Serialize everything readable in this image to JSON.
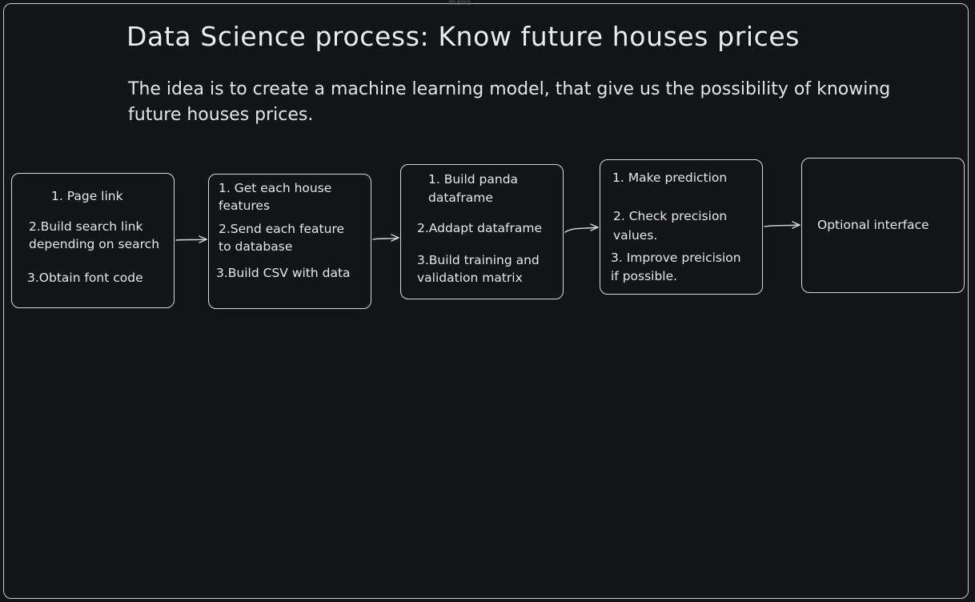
{
  "frame": {
    "name": "mano"
  },
  "header": {
    "title": "Data Science process: Know future houses prices",
    "subtitle": "The idea is to create a machine learning model, that give us the possibility of knowing future houses prices."
  },
  "steps": [
    {
      "lines": [
        "1. Page link",
        "2.Build search link",
        "depending on search",
        "3.Obtain font code"
      ]
    },
    {
      "lines": [
        "1. Get each house",
        "features",
        "2.Send each feature",
        "to database",
        "3.Build CSV with data"
      ]
    },
    {
      "lines": [
        "1. Build panda",
        "dataframe",
        "2.Addapt dataframe",
        "3.Build training and",
        "validation matrix"
      ]
    },
    {
      "lines": [
        "1. Make prediction",
        "2. Check precision",
        "values.",
        "3. Improve preicision",
        "if possible."
      ]
    },
    {
      "lines": [
        "Optional interface"
      ]
    }
  ],
  "colors": {
    "background": "#121418",
    "stroke": "#d8d8d8",
    "text": "#e6e6e6"
  }
}
